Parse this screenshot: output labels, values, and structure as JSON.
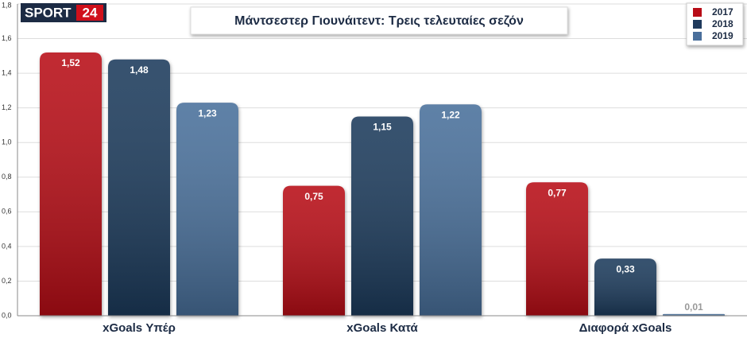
{
  "logo": {
    "text": "SPORT",
    "number": "24"
  },
  "chart_data": {
    "type": "bar",
    "title": "Μάντσεστερ Γιουνάιτεντ: Τρεις τελευταίες σεζόν",
    "categories": [
      "xGoals Υπέρ",
      "xGoals Κατά",
      "Διαφορά xGoals"
    ],
    "series": [
      {
        "name": "2017",
        "color": "#b80c17",
        "values": [
          1.52,
          0.75,
          0.77
        ],
        "value_labels": [
          "1,52",
          "0,75",
          "0,77"
        ]
      },
      {
        "name": "2018",
        "color": "#1f3a5c",
        "values": [
          1.48,
          1.15,
          0.33
        ],
        "value_labels": [
          "1,48",
          "1,15",
          "0,33"
        ]
      },
      {
        "name": "2019",
        "color": "#4a6f9b",
        "values": [
          1.23,
          1.22,
          0.01
        ],
        "value_labels": [
          "1,23",
          "1,22",
          "0,01"
        ]
      }
    ],
    "ylim": [
      0,
      1.8
    ],
    "yticks": [
      {
        "value": 0,
        "label": "0,0"
      },
      {
        "value": 0.2,
        "label": "0,2"
      },
      {
        "value": 0.4,
        "label": "0,4"
      },
      {
        "value": 0.6,
        "label": "0,6"
      },
      {
        "value": 0.8,
        "label": "0,8"
      },
      {
        "value": 1.0,
        "label": "1,0"
      },
      {
        "value": 1.2,
        "label": "1,2"
      },
      {
        "value": 1.4,
        "label": "1,4"
      },
      {
        "value": 1.6,
        "label": "1,6"
      },
      {
        "value": 1.8,
        "label": "1,8"
      }
    ],
    "grid": true,
    "legend": "top-right"
  }
}
